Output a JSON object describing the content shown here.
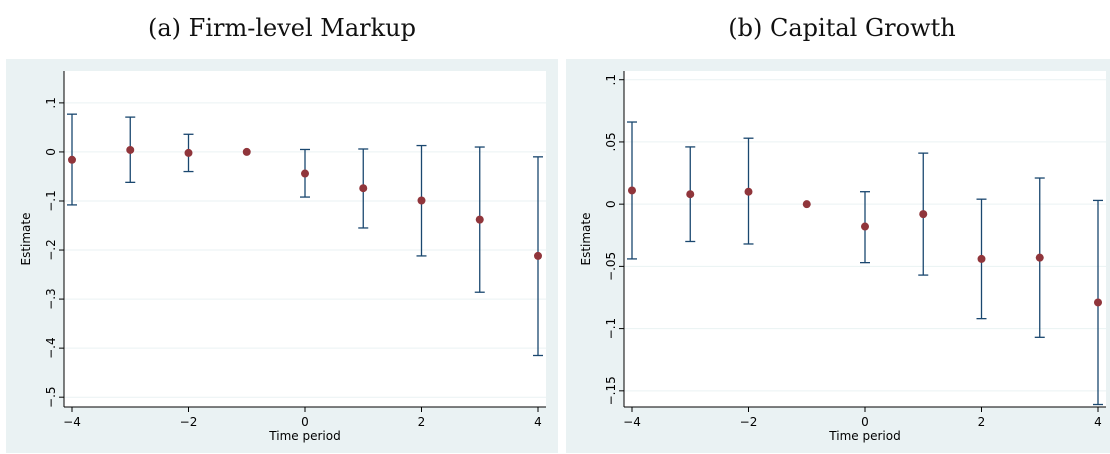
{
  "colors": {
    "plot_region_bg": "#eaf2f3",
    "plot_bg": "#ffffff",
    "gridline": "#eaf2f3",
    "axis": "#000000",
    "errorbar": "#1a476f",
    "marker": "#90353b"
  },
  "chart_data": [
    {
      "type": "scatter",
      "title": "(a) Firm-level Markup",
      "xlabel": "Time period",
      "ylabel": "Estimate",
      "xlim": [
        -4,
        4
      ],
      "ylim": [
        -0.52,
        0.165
      ],
      "grid": true,
      "legend": "none",
      "xticks": [
        {
          "value": -4,
          "label": "−4"
        },
        {
          "value": -2,
          "label": "−2"
        },
        {
          "value": 0,
          "label": "0"
        },
        {
          "value": 2,
          "label": "2"
        },
        {
          "value": 4,
          "label": "4"
        }
      ],
      "yticks": [
        {
          "value": 0.1,
          "label": ".1"
        },
        {
          "value": 0,
          "label": "0"
        },
        {
          "value": -0.1,
          "label": "−.1"
        },
        {
          "value": -0.2,
          "label": "−.2"
        },
        {
          "value": -0.3,
          "label": "−.3"
        },
        {
          "value": -0.4,
          "label": "−.4"
        },
        {
          "value": -0.5,
          "label": "−.5"
        }
      ],
      "points": [
        {
          "x": -4,
          "y": -0.016,
          "lower": -0.108,
          "upper": 0.077
        },
        {
          "x": -3,
          "y": 0.004,
          "lower": -0.062,
          "upper": 0.071
        },
        {
          "x": -2,
          "y": -0.002,
          "lower": -0.04,
          "upper": 0.036
        },
        {
          "x": -1,
          "y": 0.0
        },
        {
          "x": 0,
          "y": -0.044,
          "lower": -0.092,
          "upper": 0.005
        },
        {
          "x": 1,
          "y": -0.074,
          "lower": -0.155,
          "upper": 0.006
        },
        {
          "x": 2,
          "y": -0.099,
          "lower": -0.212,
          "upper": 0.013
        },
        {
          "x": 3,
          "y": -0.138,
          "lower": -0.286,
          "upper": 0.01
        },
        {
          "x": 4,
          "y": -0.212,
          "lower": -0.415,
          "upper": -0.01
        }
      ]
    },
    {
      "type": "scatter",
      "title": "(b) Capital Growth",
      "xlabel": "Time period",
      "ylabel": "Estimate",
      "xlim": [
        -4,
        4
      ],
      "ylim": [
        -0.163,
        0.107
      ],
      "grid": true,
      "legend": "none",
      "xticks": [
        {
          "value": -4,
          "label": "−4"
        },
        {
          "value": -2,
          "label": "−2"
        },
        {
          "value": 0,
          "label": "0"
        },
        {
          "value": 2,
          "label": "2"
        },
        {
          "value": 4,
          "label": "4"
        }
      ],
      "yticks": [
        {
          "value": 0.1,
          "label": ".1"
        },
        {
          "value": 0.05,
          "label": ".05"
        },
        {
          "value": 0,
          "label": "0"
        },
        {
          "value": -0.05,
          "label": "−.05"
        },
        {
          "value": -0.1,
          "label": "−.1"
        },
        {
          "value": -0.15,
          "label": "−.15"
        }
      ],
      "points": [
        {
          "x": -4,
          "y": 0.011,
          "lower": -0.044,
          "upper": 0.066
        },
        {
          "x": -3,
          "y": 0.008,
          "lower": -0.03,
          "upper": 0.046
        },
        {
          "x": -2,
          "y": 0.01,
          "lower": -0.032,
          "upper": 0.053
        },
        {
          "x": -1,
          "y": 0.0
        },
        {
          "x": 0,
          "y": -0.018,
          "lower": -0.047,
          "upper": 0.01
        },
        {
          "x": 1,
          "y": -0.008,
          "lower": -0.057,
          "upper": 0.041
        },
        {
          "x": 2,
          "y": -0.044,
          "lower": -0.092,
          "upper": 0.004
        },
        {
          "x": 3,
          "y": -0.043,
          "lower": -0.107,
          "upper": 0.021
        },
        {
          "x": 4,
          "y": -0.079,
          "lower": -0.161,
          "upper": 0.003
        }
      ]
    }
  ]
}
